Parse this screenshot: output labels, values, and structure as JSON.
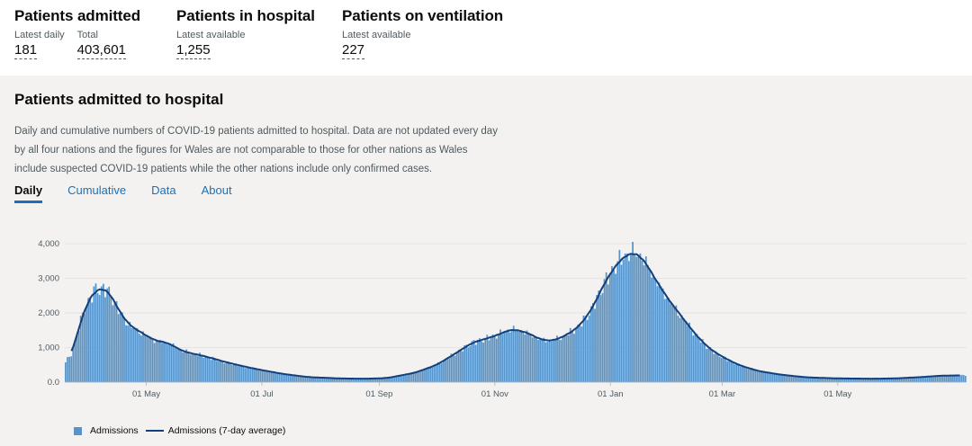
{
  "headlines": [
    {
      "title": "Patients admitted",
      "metrics": [
        {
          "label": "Latest daily",
          "value": "181"
        },
        {
          "label": "Total",
          "value": "403,601"
        }
      ]
    },
    {
      "title": "Patients in hospital",
      "metrics": [
        {
          "label": "Latest available",
          "value": "1,255"
        }
      ]
    },
    {
      "title": "Patients on ventilation",
      "metrics": [
        {
          "label": "Latest available",
          "value": "227"
        }
      ]
    }
  ],
  "card": {
    "title": "Patients admitted to hospital",
    "description": "Daily and cumulative numbers of COVID-19 patients admitted to hospital. Data are not updated every day by all four nations and the figures for Wales are not comparable to those for other nations as Wales include suspected COVID-19 patients while the other nations include only confirmed cases.",
    "tabs": [
      "Daily",
      "Cumulative",
      "Data",
      "About"
    ],
    "active_tab": "Daily"
  },
  "colors": {
    "bar": "#5694ca",
    "line": "#12407c",
    "accent": "#1d70b8"
  },
  "chart_data": {
    "type": "bar",
    "x_type": "date",
    "x_start": "2020-03-19",
    "x_end": "2021-07-08",
    "ylim": [
      0,
      4000
    ],
    "y_ticks": [
      "0.0",
      "1,000",
      "2,000",
      "3,000",
      "4,000"
    ],
    "x_ticks": [
      {
        "date": "2020-05-01",
        "label": "01 May"
      },
      {
        "date": "2020-07-01",
        "label": "01 Jul"
      },
      {
        "date": "2020-09-01",
        "label": "01 Sep"
      },
      {
        "date": "2020-11-01",
        "label": "01 Nov"
      },
      {
        "date": "2021-01-01",
        "label": "01 Jan"
      },
      {
        "date": "2021-03-01",
        "label": "01 Mar"
      },
      {
        "date": "2021-05-01",
        "label": "01 May"
      }
    ],
    "grid": true,
    "legend_position": "bottom-left",
    "series": [
      {
        "name": "Admissions",
        "kind": "bar"
      },
      {
        "name": "Admissions (7-day average)",
        "kind": "line"
      }
    ],
    "shape_points": [
      [
        "2020-03-19",
        600
      ],
      [
        "2020-03-22",
        800
      ],
      [
        "2020-03-26",
        1600
      ],
      [
        "2020-03-30",
        2300
      ],
      [
        "2020-04-04",
        2700
      ],
      [
        "2020-04-08",
        2750
      ],
      [
        "2020-04-12",
        2550
      ],
      [
        "2020-04-17",
        2000
      ],
      [
        "2020-04-22",
        1650
      ],
      [
        "2020-04-28",
        1450
      ],
      [
        "2020-05-05",
        1220
      ],
      [
        "2020-05-12",
        1150
      ],
      [
        "2020-05-20",
        900
      ],
      [
        "2020-06-01",
        750
      ],
      [
        "2020-06-12",
        580
      ],
      [
        "2020-06-22",
        450
      ],
      [
        "2020-07-01",
        350
      ],
      [
        "2020-07-12",
        240
      ],
      [
        "2020-07-25",
        150
      ],
      [
        "2020-08-10",
        110
      ],
      [
        "2020-08-25",
        100
      ],
      [
        "2020-09-05",
        120
      ],
      [
        "2020-09-20",
        280
      ],
      [
        "2020-10-01",
        500
      ],
      [
        "2020-10-10",
        800
      ],
      [
        "2020-10-20",
        1150
      ],
      [
        "2020-11-01",
        1350
      ],
      [
        "2020-11-10",
        1550
      ],
      [
        "2020-11-18",
        1450
      ],
      [
        "2020-11-25",
        1250
      ],
      [
        "2020-12-01",
        1200
      ],
      [
        "2020-12-08",
        1350
      ],
      [
        "2020-12-15",
        1600
      ],
      [
        "2020-12-22",
        2100
      ],
      [
        "2020-12-29",
        2900
      ],
      [
        "2021-01-05",
        3500
      ],
      [
        "2021-01-12",
        3800
      ],
      [
        "2021-01-18",
        3650
      ],
      [
        "2021-01-25",
        3000
      ],
      [
        "2021-02-01",
        2400
      ],
      [
        "2021-02-08",
        1900
      ],
      [
        "2021-02-15",
        1400
      ],
      [
        "2021-02-22",
        1000
      ],
      [
        "2021-03-01",
        750
      ],
      [
        "2021-03-10",
        500
      ],
      [
        "2021-03-20",
        330
      ],
      [
        "2021-04-01",
        220
      ],
      [
        "2021-04-15",
        140
      ],
      [
        "2021-05-01",
        110
      ],
      [
        "2021-05-20",
        100
      ],
      [
        "2021-06-01",
        110
      ],
      [
        "2021-06-15",
        150
      ],
      [
        "2021-06-25",
        190
      ],
      [
        "2021-07-08",
        200
      ]
    ]
  }
}
